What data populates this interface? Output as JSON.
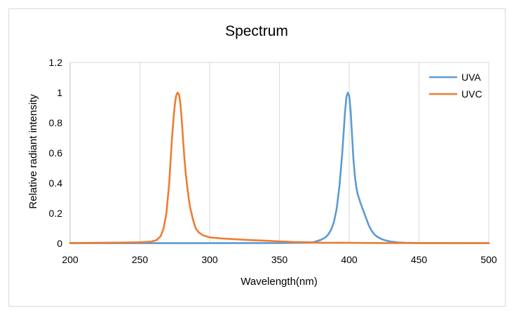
{
  "chart_data": {
    "type": "line",
    "title": "Spectrum",
    "xlabel": "Wavelength(nm)",
    "ylabel": "Relative radiant intensity",
    "xlim": [
      200,
      500
    ],
    "ylim": [
      0,
      1.2
    ],
    "x_ticks": [
      200,
      250,
      300,
      350,
      400,
      450,
      500
    ],
    "x_tick_labels": [
      "200",
      "250",
      "300",
      "350",
      "400",
      "450",
      "500"
    ],
    "y_ticks": [
      0,
      0.2,
      0.4,
      0.6,
      0.8,
      1,
      1.2
    ],
    "y_tick_labels": [
      "0",
      "0.2",
      "0.4",
      "0.6",
      "0.8",
      "1",
      "1.2"
    ],
    "grid": "vertical",
    "legend_position": "top-right",
    "series": [
      {
        "name": "UVA",
        "color": "#5b9bd5",
        "x": [
          200,
          250,
          300,
          350,
          370,
          375,
          380,
          383,
          385,
          387,
          389,
          391,
          393,
          395,
          397,
          398,
          399,
          400,
          401,
          402,
          403,
          404,
          405,
          406,
          407,
          408,
          410,
          412,
          414,
          416,
          418,
          420,
          423,
          426,
          430,
          435,
          440,
          450,
          460,
          480,
          500
        ],
        "y": [
          0.002,
          0.002,
          0.002,
          0.003,
          0.005,
          0.01,
          0.025,
          0.04,
          0.06,
          0.09,
          0.14,
          0.23,
          0.38,
          0.6,
          0.87,
          0.97,
          1.0,
          0.98,
          0.88,
          0.72,
          0.56,
          0.45,
          0.38,
          0.33,
          0.3,
          0.27,
          0.22,
          0.17,
          0.12,
          0.085,
          0.06,
          0.045,
          0.03,
          0.02,
          0.012,
          0.007,
          0.004,
          0.003,
          0.002,
          0.002,
          0.002
        ]
      },
      {
        "name": "UVC",
        "color": "#ed7d31",
        "x": [
          200,
          220,
          240,
          250,
          258,
          262,
          265,
          267,
          269,
          271,
          272,
          273,
          274,
          275,
          276,
          277,
          278,
          279,
          280,
          281,
          282,
          283,
          284,
          285,
          286,
          288,
          290,
          292,
          295,
          300,
          310,
          320,
          330,
          340,
          350,
          360,
          370,
          380,
          400,
          420,
          450,
          500
        ],
        "y": [
          0.003,
          0.004,
          0.006,
          0.008,
          0.012,
          0.022,
          0.05,
          0.1,
          0.2,
          0.4,
          0.55,
          0.7,
          0.82,
          0.92,
          0.98,
          1.0,
          0.99,
          0.93,
          0.82,
          0.68,
          0.55,
          0.45,
          0.37,
          0.3,
          0.24,
          0.16,
          0.1,
          0.075,
          0.055,
          0.04,
          0.032,
          0.027,
          0.022,
          0.018,
          0.014,
          0.01,
          0.008,
          0.005,
          0.004,
          0.003,
          0.003,
          0.002
        ]
      }
    ]
  }
}
